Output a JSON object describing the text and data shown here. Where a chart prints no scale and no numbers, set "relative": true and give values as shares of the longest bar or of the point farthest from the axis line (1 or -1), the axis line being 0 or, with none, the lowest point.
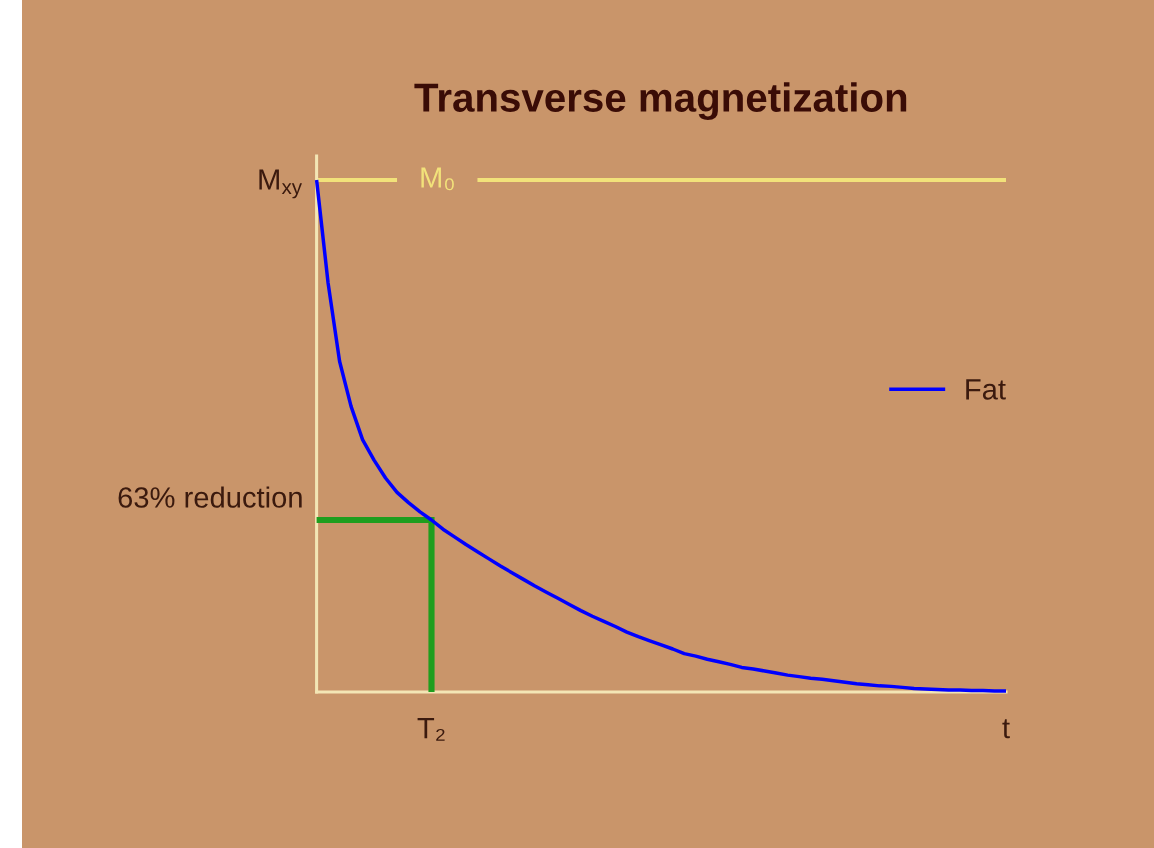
{
  "chart_data": {
    "type": "line",
    "title": "Transverse magnetization",
    "ylabel": "M$_{xy}$",
    "relative": true,
    "categories": [
      null,
      null,
      null,
      null,
      null,
      null,
      null,
      null,
      null,
      null,
      "T₂",
      null,
      null,
      null,
      null,
      null,
      null,
      null,
      null,
      null,
      null,
      null,
      null,
      null,
      null,
      null,
      null,
      null,
      null,
      null,
      null,
      null,
      null,
      null,
      null,
      null,
      null,
      null,
      null,
      null,
      null,
      null,
      null,
      null,
      null,
      null,
      null,
      null,
      null,
      null,
      null,
      null,
      null,
      null,
      null,
      null,
      null,
      null,
      null,
      null,
      "t"
    ],
    "series": [
      {
        "name": "Fat",
        "color": "#0000ff",
        "values": [
          1.0,
          0.799,
          0.646,
          0.558,
          0.493,
          0.453,
          0.418,
          0.39,
          0.37,
          0.352,
          0.336,
          0.318,
          0.303,
          0.288,
          0.274,
          0.26,
          0.246,
          0.233,
          0.22,
          0.207,
          0.195,
          0.183,
          0.171,
          0.159,
          0.148,
          0.138,
          0.128,
          0.117,
          0.108,
          0.1,
          0.092,
          0.084,
          0.075,
          0.07,
          0.064,
          0.059,
          0.054,
          0.048,
          0.045,
          0.041,
          0.037,
          0.033,
          0.03,
          0.027,
          0.025,
          0.022,
          0.019,
          0.016,
          0.014,
          0.012,
          0.011,
          0.009,
          0.007,
          0.006,
          0.005,
          0.004,
          0.004,
          0.003,
          0.003,
          0.002,
          0.002
        ]
      },
      {
        "name": "63% reduction",
        "type": "step",
        "color": "#1e9e1e",
        "values": [
          0.336,
          0.336,
          0.336,
          0.336,
          0.336,
          0.336,
          0.336,
          0.336,
          0.336,
          0.336,
          0,
          null,
          null,
          null,
          null,
          null,
          null,
          null,
          null,
          null,
          null,
          null,
          null,
          null,
          null,
          null,
          null,
          null,
          null,
          null,
          null,
          null,
          null,
          null,
          null,
          null,
          null,
          null,
          null,
          null,
          null,
          null,
          null,
          null,
          null,
          null,
          null,
          null,
          null,
          null,
          null,
          null,
          null,
          null,
          null,
          null,
          null,
          null,
          null,
          null,
          null
        ]
      },
      {
        "name": "M₀",
        "color": "#f2e27a",
        "values": [
          1,
          1,
          1,
          1,
          1,
          1,
          1,
          1,
          null,
          null,
          null,
          null,
          null,
          null,
          1,
          1,
          1,
          1,
          1,
          1,
          1,
          1,
          1,
          1,
          1,
          1,
          1,
          1,
          1,
          1,
          1,
          1,
          1,
          1,
          1,
          1,
          1,
          1,
          1,
          1,
          1,
          1,
          1,
          1,
          1,
          1,
          1,
          1,
          1,
          1,
          1,
          1,
          1,
          1,
          1,
          1,
          1,
          1,
          1,
          1,
          1
        ]
      }
    ],
    "legend": "right"
  }
}
